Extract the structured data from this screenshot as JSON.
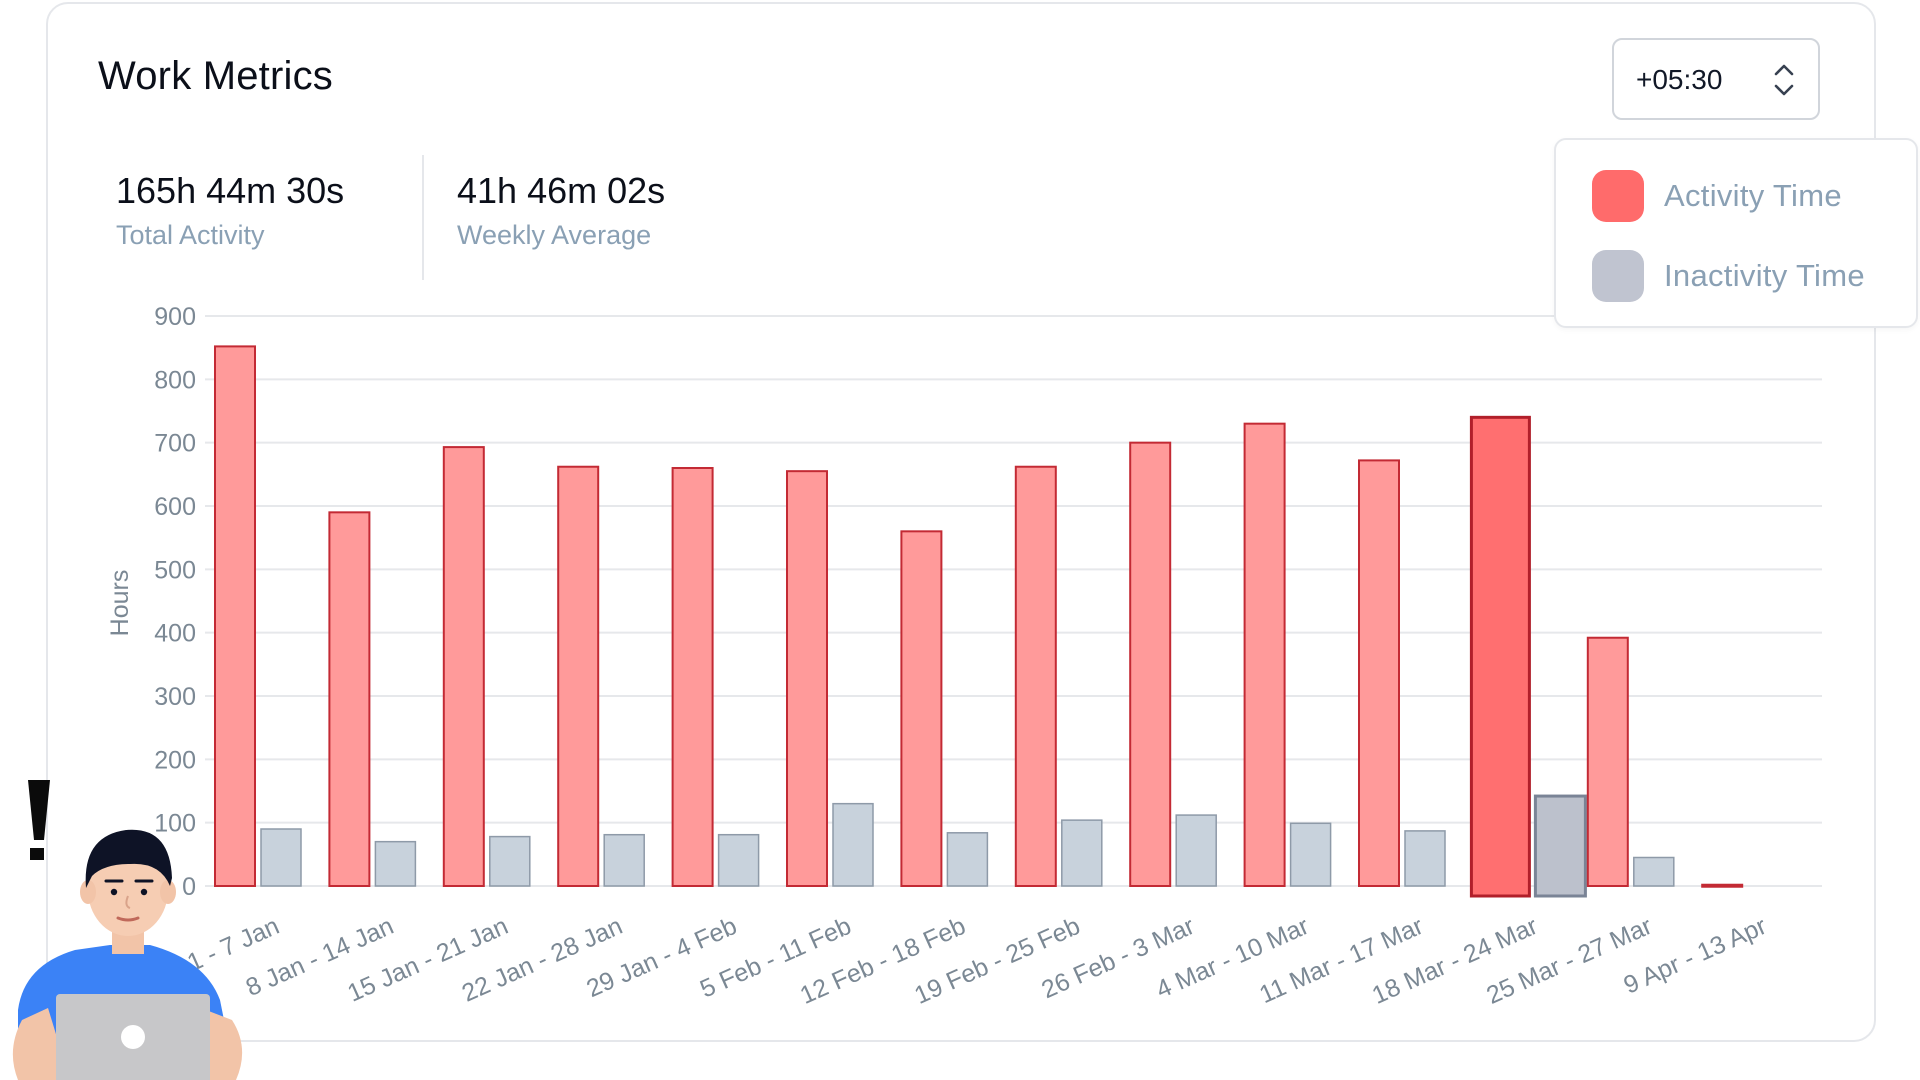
{
  "header": {
    "title": "Work Metrics",
    "timezone_value": "+05:30"
  },
  "stats": [
    {
      "value": "165h 44m 30s",
      "label": "Total Activity"
    },
    {
      "value": "41h 46m 02s",
      "label": "Weekly Average"
    }
  ],
  "legend": [
    {
      "label": "Activity Time",
      "color": "#ff6b6b"
    },
    {
      "label": "Inactivity Time",
      "color": "#c0c4d0"
    }
  ],
  "chart_data": {
    "type": "bar",
    "ylabel": "Hours",
    "xlabel": "",
    "ylim": [
      0,
      900
    ],
    "yticks": [
      0,
      100,
      200,
      300,
      400,
      500,
      600,
      700,
      800,
      900
    ],
    "grid": true,
    "legend_position": "top-right",
    "categories": [
      "1 - 7 Jan",
      "8 Jan - 14 Jan",
      "15 Jan - 21 Jan",
      "22 Jan - 28 Jan",
      "29 Jan - 4 Feb",
      "5 Feb - 11 Feb",
      "12 Feb - 18 Feb",
      "19 Feb - 25 Feb",
      "26 Feb - 3 Mar",
      "4 Mar - 10 Mar",
      "11 Mar - 17 Mar",
      "18 Mar - 24 Mar",
      "25 Mar - 27 Mar",
      "9 Apr - 13 Apr"
    ],
    "highlighted_category": "18 Mar - 24 Mar",
    "series": [
      {
        "name": "Activity Time",
        "color": "#ff9a9a",
        "highlight_color": "#ff6f70",
        "values": [
          852,
          590,
          693,
          662,
          660,
          655,
          560,
          662,
          700,
          730,
          672,
          740,
          392,
          2
        ]
      },
      {
        "name": "Inactivity Time",
        "color": "#c8d2dc",
        "highlight_color": "#bcc1cc",
        "values": [
          90,
          70,
          78,
          81,
          81,
          130,
          84,
          104,
          112,
          99,
          87,
          142,
          45,
          0
        ]
      }
    ]
  },
  "icons": {
    "timezone_chevrons": "chevron-up-down-icon",
    "avatar": "person-with-laptop-icon",
    "alert": "exclamation-icon"
  }
}
